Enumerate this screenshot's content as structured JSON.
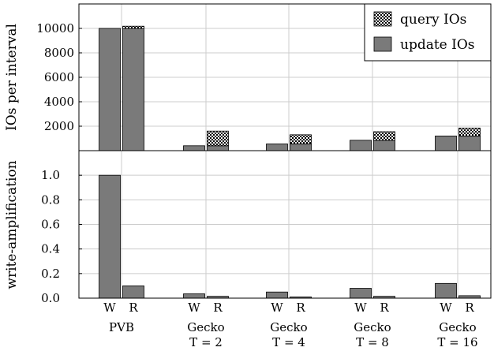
{
  "chart_data": [
    {
      "type": "bar",
      "stacked": true,
      "ylabel": "IOs per interval",
      "ylim": [
        0,
        12000
      ],
      "yticks": [
        2000,
        4000,
        6000,
        8000,
        10000
      ],
      "grid": true,
      "legend": {
        "placement": "top-right",
        "entries": [
          "query IOs",
          "update IOs"
        ]
      },
      "groups": [
        "PVB",
        "Gecko T = 2",
        "Gecko T = 4",
        "Gecko T = 8",
        "Gecko T = 16"
      ],
      "categories": [
        "W",
        "R",
        "W",
        "R",
        "W",
        "R",
        "W",
        "R",
        "W",
        "R"
      ],
      "series": [
        {
          "name": "update IOs",
          "values": [
            10000,
            10000,
            400,
            400,
            550,
            550,
            850,
            850,
            1200,
            1200
          ]
        },
        {
          "name": "query IOs",
          "values": [
            0,
            180,
            0,
            1200,
            0,
            750,
            0,
            700,
            0,
            650
          ]
        }
      ]
    },
    {
      "type": "bar",
      "ylabel": "write-amplification",
      "ylim": [
        0,
        1.2
      ],
      "yticks": [
        "0.0",
        "0.2",
        "0.4",
        "0.6",
        "0.8",
        "1.0"
      ],
      "grid": true,
      "groups": [
        "PVB",
        "Gecko T = 2",
        "Gecko T = 4",
        "Gecko T = 8",
        "Gecko T = 16"
      ],
      "categories": [
        "W",
        "R",
        "W",
        "R",
        "W",
        "R",
        "W",
        "R",
        "W",
        "R"
      ],
      "values": [
        1.0,
        0.1,
        0.035,
        0.015,
        0.05,
        0.01,
        0.08,
        0.015,
        0.12,
        0.02
      ]
    }
  ],
  "group_labels": [
    {
      "line1": "PVB",
      "line2": ""
    },
    {
      "line1": "Gecko",
      "line2": "T = 2"
    },
    {
      "line1": "Gecko",
      "line2": "T = 4"
    },
    {
      "line1": "Gecko",
      "line2": "T = 8"
    },
    {
      "line1": "Gecko",
      "line2": "T = 16"
    }
  ],
  "colors": {
    "bar_fill": "#7a7a7a",
    "bar_stroke": "#000000",
    "grid": "#cccccc",
    "axis": "#000000"
  }
}
